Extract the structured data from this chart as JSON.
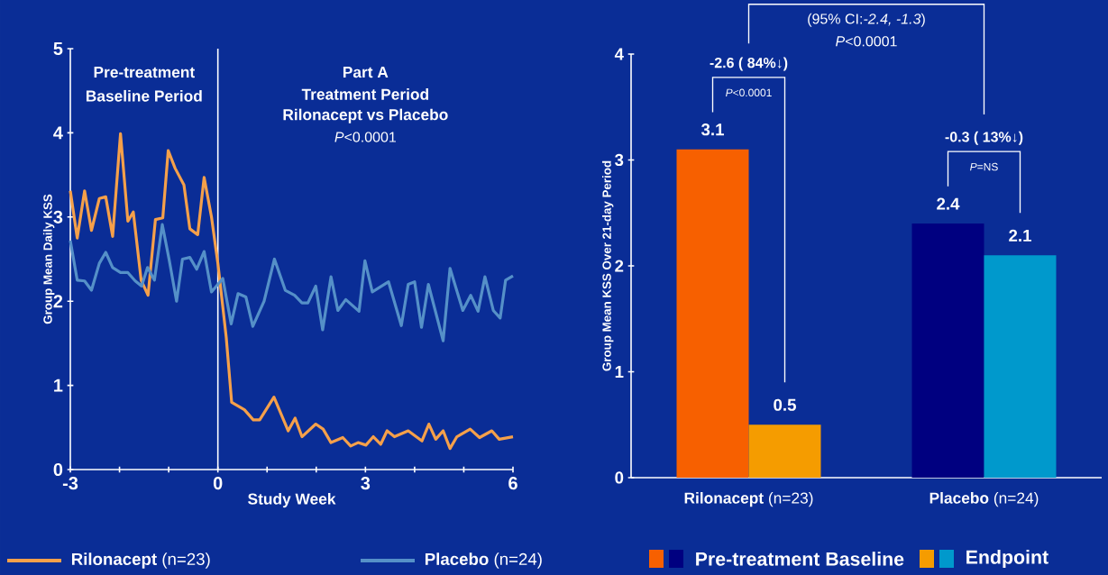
{
  "chart_data": [
    {
      "type": "line",
      "xlabel": "Study Week",
      "ylabel": "Group Mean Daily KSS",
      "xlim": [
        -3,
        6
      ],
      "ylim": [
        0,
        5
      ],
      "xticks": [
        -3,
        {
          "value": -2,
          "label": null
        },
        {
          "value": -1,
          "label": null
        },
        0,
        {
          "value": 1,
          "label": null
        },
        {
          "value": 2,
          "label": null
        },
        3,
        {
          "value": 4,
          "label": null
        },
        {
          "value": 5,
          "label": null
        },
        6
      ],
      "yticks": [
        0,
        1,
        2,
        3,
        4,
        5
      ],
      "series": [
        {
          "name": "**Rilonacept** (n=23)",
          "color": "#f5a04a",
          "x": [
            -3,
            -2.86,
            -2.71,
            -2.57,
            -2.41,
            -2.28,
            -2.14,
            -1.98,
            -1.83,
            -1.72,
            -1.56,
            -1.42,
            -1.27,
            -1.12,
            -1.01,
            -0.87,
            -0.69,
            -0.57,
            -0.41,
            -0.28,
            -0.13,
            0,
            0.17,
            0.28,
            0.54,
            0.72,
            0.85,
            1.14,
            1.43,
            1.57,
            1.71,
            1.99,
            2.14,
            2.3,
            2.54,
            2.7,
            2.85,
            3.01,
            3.16,
            3.31,
            3.44,
            3.59,
            3.87,
            4.15,
            4.29,
            4.43,
            4.58,
            4.72,
            4.86,
            5.13,
            5.32,
            5.57,
            5.72,
            6
          ],
          "values": [
            3.31,
            2.75,
            3.31,
            2.84,
            3.22,
            3.24,
            2.77,
            3.99,
            2.95,
            3.06,
            2.25,
            2.07,
            2.97,
            2.99,
            3.79,
            3.58,
            3.38,
            2.86,
            2.79,
            3.47,
            3.0,
            2.45,
            1.57,
            0.8,
            0.71,
            0.59,
            0.59,
            0.86,
            0.46,
            0.61,
            0.39,
            0.54,
            0.48,
            0.32,
            0.38,
            0.28,
            0.32,
            0.29,
            0.39,
            0.3,
            0.46,
            0.39,
            0.46,
            0.34,
            0.54,
            0.36,
            0.46,
            0.25,
            0.39,
            0.48,
            0.38,
            0.46,
            0.36,
            0.39
          ]
        },
        {
          "name": "**Placebo** (n=24)",
          "color": "#5590c8",
          "x": [
            -3,
            -2.86,
            -2.71,
            -2.57,
            -2.41,
            -2.28,
            -2.14,
            -1.98,
            -1.83,
            -1.68,
            -1.55,
            -1.43,
            -1.29,
            -1.13,
            -0.99,
            -0.84,
            -0.72,
            -0.57,
            -0.43,
            -0.28,
            -0.13,
            0,
            0.1,
            0.27,
            0.41,
            0.57,
            0.71,
            0.94,
            1.15,
            1.37,
            1.56,
            1.71,
            1.83,
            1.99,
            2.13,
            2.3,
            2.44,
            2.6,
            2.87,
            2.99,
            3.14,
            3.47,
            3.73,
            3.87,
            4.0,
            4.14,
            4.28,
            4.58,
            4.72,
            4.98,
            5.14,
            5.29,
            5.43,
            5.6,
            5.74,
            5.85,
            6
          ],
          "values": [
            2.72,
            2.25,
            2.24,
            2.13,
            2.45,
            2.58,
            2.4,
            2.34,
            2.34,
            2.24,
            2.18,
            2.4,
            2.25,
            2.91,
            2.49,
            2.0,
            2.5,
            2.52,
            2.38,
            2.59,
            2.11,
            2.2,
            2.27,
            1.73,
            2.09,
            2.05,
            1.7,
            2.0,
            2.5,
            2.13,
            2.07,
            1.98,
            1.98,
            2.18,
            1.66,
            2.29,
            1.89,
            2.02,
            1.88,
            2.48,
            2.11,
            2.23,
            1.71,
            2.2,
            2.23,
            1.69,
            2.2,
            1.53,
            2.39,
            1.89,
            2.07,
            1.88,
            2.29,
            1.89,
            1.8,
            2.25,
            2.3
          ]
        }
      ],
      "ref_lines": [
        {
          "axis": "x",
          "value": 0,
          "color": "#ffffff"
        }
      ],
      "annotations": [
        "Pre-treatment",
        "Baseline Period",
        "Part A",
        "Treatment Period",
        "Rilonacept vs Placebo",
        "*P*<0.0001"
      ],
      "legend": "bottom"
    },
    {
      "type": "bar",
      "categories": [
        "**Rilonacept** (n=23)",
        "**Placebo** (n=24)"
      ],
      "ylabel": "Group Mean KSS Over 21-day Period",
      "ylim": [
        0,
        4
      ],
      "yticks": [
        0,
        1,
        2,
        3,
        4
      ],
      "series": [
        {
          "name": "Pre-treatment Baseline",
          "colors": [
            "#f76000",
            "#000080"
          ],
          "values": [
            3.1,
            2.4
          ]
        },
        {
          "name": "Endpoint",
          "colors": [
            "#f59c00",
            "#0099cc"
          ],
          "values": [
            0.5,
            2.1
          ]
        }
      ],
      "data_labels": true,
      "annotations": [
        "(95% CI:*-2.4, -1.3*)",
        "*P*<0.0001",
        "-2.6 ( 84%↓)",
        "*P*<0.0001",
        "-0.3 ( 13%↓)",
        "*P*=NS"
      ],
      "legend": "bottom"
    }
  ]
}
